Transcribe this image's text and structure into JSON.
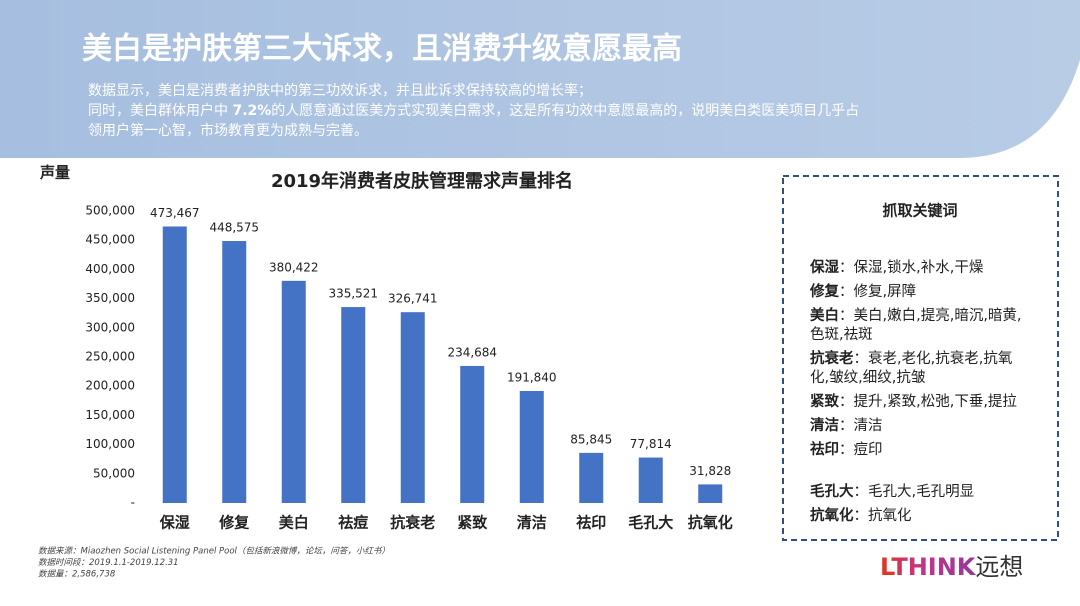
{
  "header": {
    "title": "美白是护肤第三大诉求，且消费升级意愿最高",
    "lines": [
      [
        "数据显示，美白是消费者护肤中的第三功效诉求，并且此诉求保持较高的增长率；"
      ],
      [
        "同时，美白群体用户中 ",
        "7.2%",
        "的人愿意通过医美方式实现美白需求，这是所有功效中意愿最高的，说明美白类医美项目几乎占"
      ],
      [
        "领用户第一心智，市场教育更为成熟与完善。"
      ]
    ]
  },
  "chart_data": {
    "type": "bar",
    "title": "2019年消费者皮肤管理需求声量排名",
    "y_label": "声量",
    "categories": [
      "保湿",
      "修复",
      "美白",
      "祛痘",
      "抗衰老",
      "紧致",
      "清洁",
      "祛印",
      "毛孔大",
      "抗氧化"
    ],
    "values": [
      473467,
      448575,
      380422,
      335521,
      326741,
      234684,
      191840,
      85845,
      77814,
      31828
    ],
    "value_labels": [
      "473,467",
      "448,575",
      "380,422",
      "335,521",
      "326,741",
      "234,684",
      "191,840",
      "85,845",
      "77,814",
      "31,828"
    ],
    "color": "#4472c4",
    "ylim": [
      0,
      500000
    ],
    "yticks": [
      {
        "value": 0,
        "label": "-"
      },
      {
        "value": 50000,
        "label": "50,000"
      },
      {
        "value": 100000,
        "label": "100,000"
      },
      {
        "value": 150000,
        "label": "150,000"
      },
      {
        "value": 200000,
        "label": "200,000"
      },
      {
        "value": 250000,
        "label": "250,000"
      },
      {
        "value": 300000,
        "label": "300,000"
      },
      {
        "value": 350000,
        "label": "350,000"
      },
      {
        "value": 400000,
        "label": "400,000"
      },
      {
        "value": 450000,
        "label": "450,000"
      },
      {
        "value": 500000,
        "label": "500,000"
      }
    ],
    "grid": false
  },
  "keywords": {
    "title": "抓取关键词",
    "items": [
      {
        "term": "保湿",
        "desc": [
          "：保湿,锁水,补水,干燥"
        ]
      },
      {
        "term": "修复",
        "desc": [
          "：修复,屏障"
        ]
      },
      {
        "term": "美白",
        "desc": [
          "：美白,嫩白,提亮,暗沉,暗黄,",
          "色斑,祛斑"
        ]
      },
      {
        "term": "抗衰老",
        "desc": [
          "：衰老,老化,抗衰老,抗氧",
          "化,皱纹,细纹,抗皱"
        ]
      },
      {
        "term": "紧致",
        "desc": [
          "：提升,紧致,松弛,下垂,提拉"
        ]
      },
      {
        "term": "清洁",
        "desc": [
          "：清洁"
        ]
      },
      {
        "term": "祛印",
        "desc": [
          "：痘印"
        ]
      },
      {
        "term": "毛孔大",
        "desc": [
          "：毛孔大,毛孔明显"
        ]
      },
      {
        "term": "抗氧化",
        "desc": [
          "：抗氧化"
        ]
      }
    ]
  },
  "source": [
    "数据来源：Miaozhen Social Listening Panel Pool（包括新浪微博，论坛，问答，小红书）",
    "数据时间段：2019.1.1-2019.12.31",
    "数据量：2,586,738"
  ],
  "logo": [
    "L",
    "THINK",
    "远想"
  ]
}
